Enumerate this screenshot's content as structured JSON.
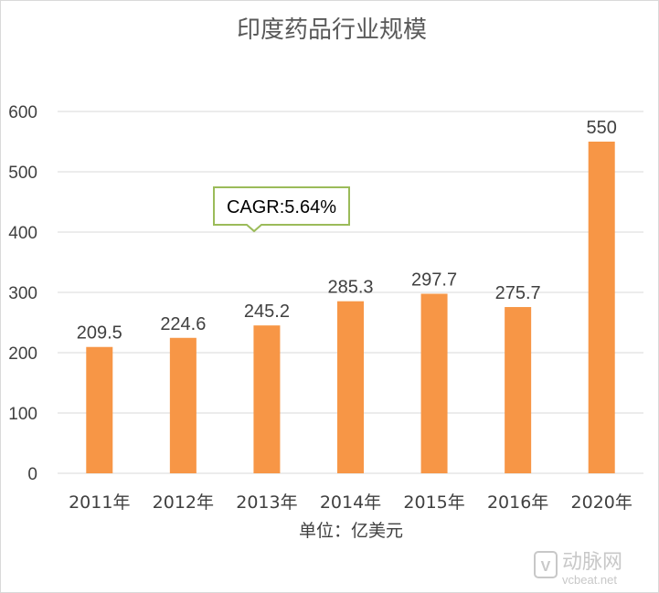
{
  "chart_data": {
    "type": "bar",
    "title": "印度药品行业规模",
    "categories": [
      "2011年",
      "2012年",
      "2013年",
      "2014年",
      "2015年",
      "2016年",
      "2020年"
    ],
    "values": [
      209.5,
      224.6,
      245.2,
      285.3,
      297.7,
      275.7,
      550
    ],
    "data_labels": [
      "209.5",
      "224.6",
      "245.2",
      "285.3",
      "297.7",
      "275.7",
      "550"
    ],
    "xlabel": "单位：亿美元",
    "ylabel": "",
    "ylim": [
      0,
      600
    ],
    "yticks": [
      "0",
      "100",
      "200",
      "300",
      "400",
      "500",
      "600"
    ],
    "grid": true,
    "legend": "none",
    "bar_color": "#f79646",
    "annotation": {
      "text": "CAGR:5.64%",
      "border_color": "#9bbb59"
    }
  },
  "watermark": {
    "brand": "动脉网",
    "site": "vcbeat.net"
  }
}
